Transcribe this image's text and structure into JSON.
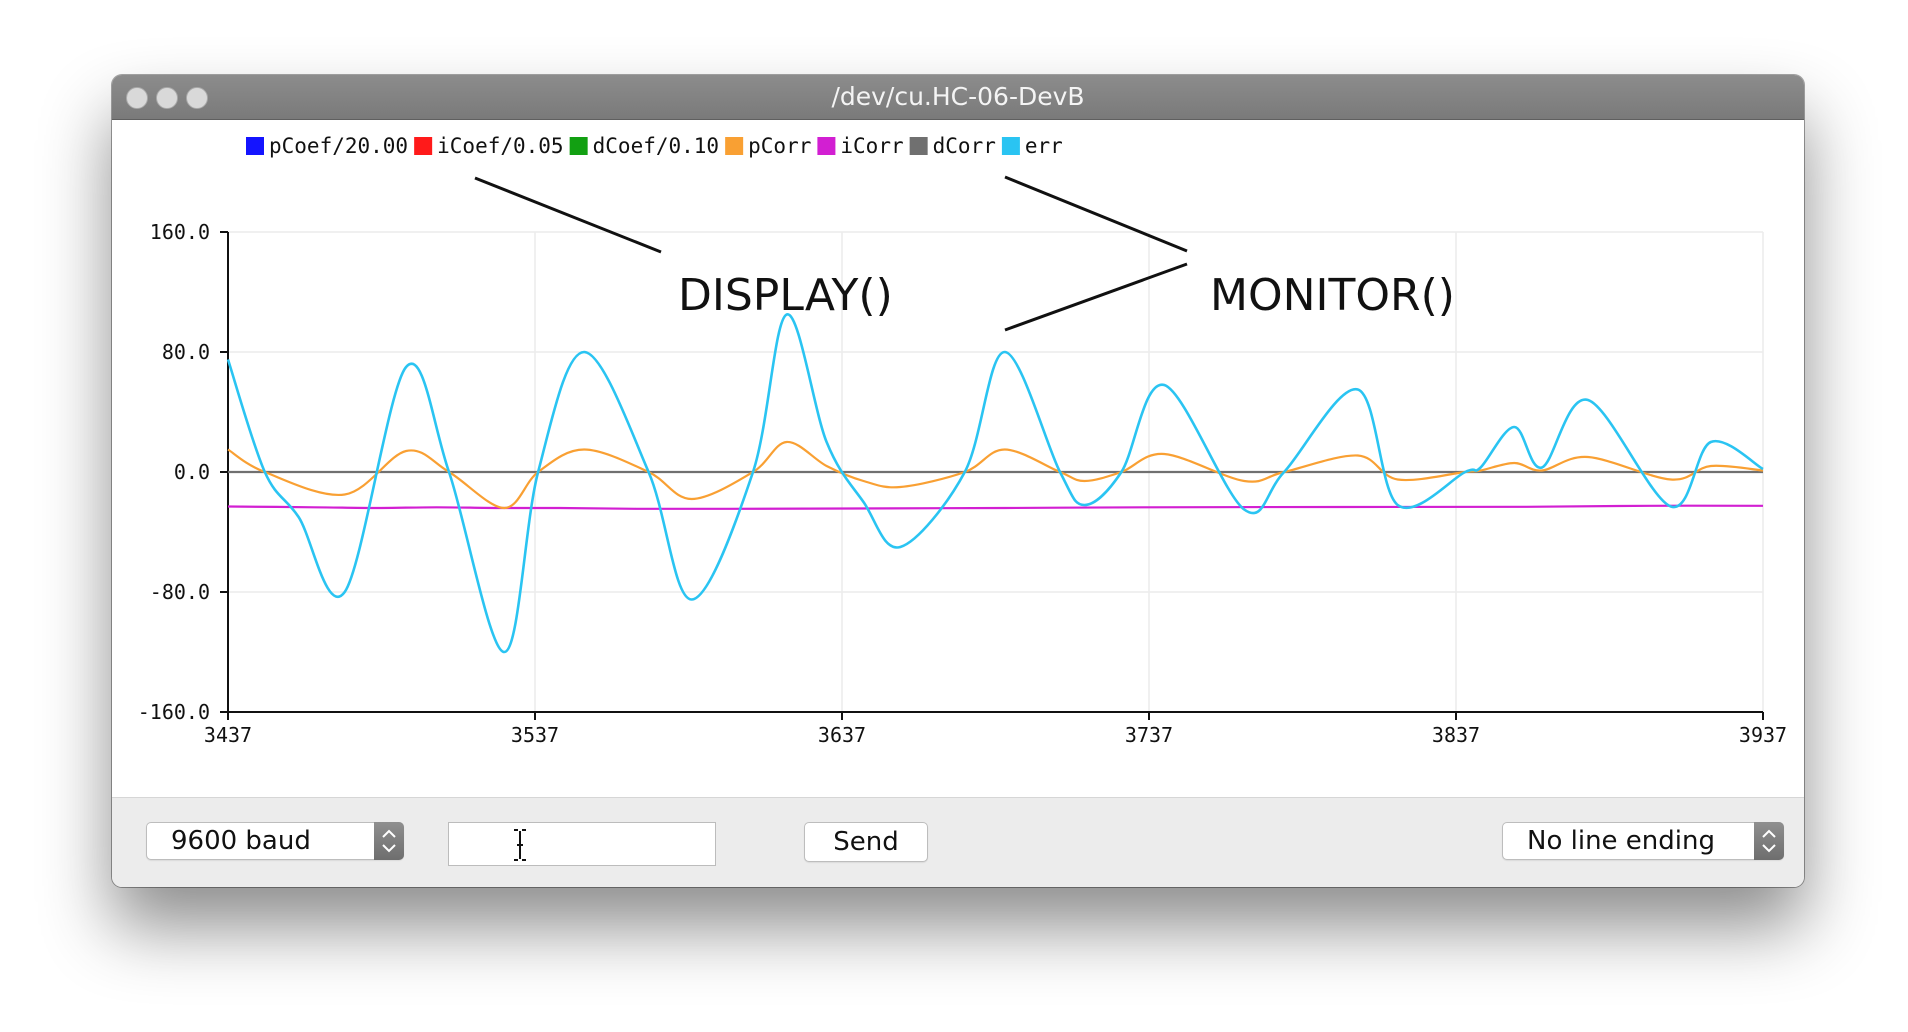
{
  "window": {
    "title": "/dev/cu.HC-06-DevB"
  },
  "legend": [
    {
      "label": "pCoef/20.00",
      "color": "#1414ff"
    },
    {
      "label": "iCoef/0.05",
      "color": "#ff1a1a"
    },
    {
      "label": "dCoef/0.10",
      "color": "#12a012"
    },
    {
      "label": "pCorr",
      "color": "#f9a033"
    },
    {
      "label": "iCorr",
      "color": "#d21fd2"
    },
    {
      "label": "dCorr",
      "color": "#707070"
    },
    {
      "label": "err",
      "color": "#2ac4f2"
    }
  ],
  "annotations": {
    "display_label": "DISPLAY()",
    "monitor_label": "MONITOR()"
  },
  "controls": {
    "baud_select": "9600 baud",
    "input_value": "",
    "send_label": "Send",
    "line_ending_select": "No line ending"
  },
  "chart_data": {
    "type": "line",
    "xlim": [
      3437,
      3937
    ],
    "ylim": [
      -160,
      160
    ],
    "x_ticks": [
      "3437",
      "3537",
      "3637",
      "3737",
      "3837",
      "3937"
    ],
    "y_ticks": [
      "160.0",
      "80.0",
      "0.0",
      "-80.0",
      "-160.0"
    ],
    "grid": true,
    "legend_position": "top-left",
    "series": [
      {
        "name": "err",
        "color": "#2ac4f2",
        "x": [
          3437,
          3449,
          3460,
          3475,
          3495,
          3509,
          3527,
          3538,
          3553,
          3574,
          3588,
          3608,
          3619,
          3632,
          3644,
          3656,
          3677,
          3690,
          3708,
          3716,
          3728,
          3742,
          3768,
          3781,
          3805,
          3818,
          3840,
          3845,
          3856,
          3865,
          3880,
          3907,
          3920,
          3937
        ],
        "y": [
          75,
          0,
          -30,
          -80,
          70,
          0,
          -120,
          0,
          80,
          0,
          -85,
          0,
          105,
          20,
          -20,
          -50,
          0,
          80,
          0,
          -22,
          0,
          58,
          -25,
          0,
          55,
          -22,
          0,
          3,
          30,
          3,
          48,
          -23,
          20,
          2
        ]
      },
      {
        "name": "pCorr",
        "color": "#f9a033",
        "x": [
          3437,
          3449,
          3475,
          3495,
          3509,
          3527,
          3538,
          3553,
          3574,
          3588,
          3608,
          3619,
          3632,
          3644,
          3656,
          3677,
          3690,
          3708,
          3716,
          3728,
          3742,
          3768,
          3781,
          3805,
          3818,
          3840,
          3845,
          3856,
          3865,
          3880,
          3907,
          3920,
          3937
        ],
        "y": [
          15,
          0,
          -15,
          14,
          0,
          -24,
          0,
          15,
          0,
          -18,
          0,
          20,
          4,
          -6,
          -10,
          0,
          15,
          0,
          -6,
          0,
          12,
          -6,
          0,
          11,
          -5,
          0,
          1,
          6,
          1,
          10,
          -5,
          4,
          1
        ]
      },
      {
        "name": "iCorr",
        "color": "#d21fd2",
        "x": [
          3437,
          3465,
          3485,
          3505,
          3525,
          3545,
          3570,
          3600,
          3640,
          3690,
          3737,
          3800,
          3860,
          3900,
          3937
        ],
        "y": [
          -23,
          -23.5,
          -24,
          -23.5,
          -24,
          -24,
          -24.5,
          -24.5,
          -24.3,
          -24,
          -23.5,
          -23.3,
          -23.2,
          -22.5,
          -22.5
        ]
      },
      {
        "name": "dCorr",
        "color": "#707070",
        "x": [
          3437,
          3937
        ],
        "y": [
          0,
          0
        ]
      }
    ]
  }
}
